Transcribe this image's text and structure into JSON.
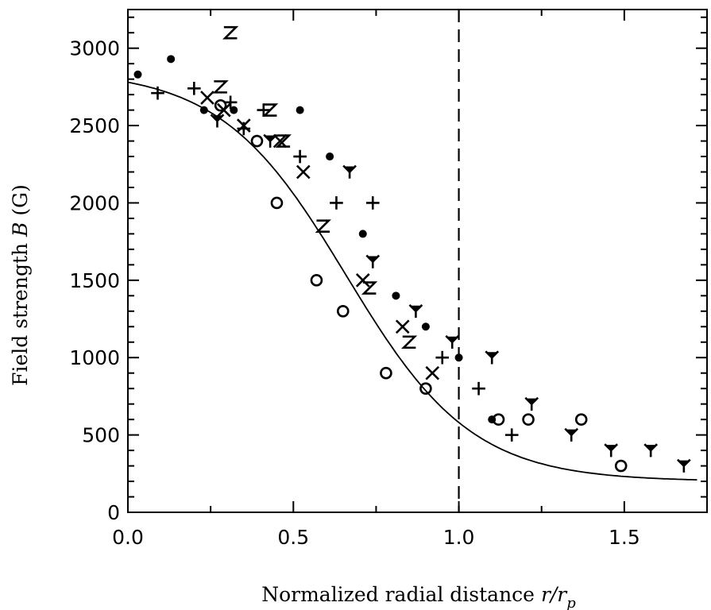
{
  "chart_data": {
    "type": "scatter",
    "xlabel_main": "Normalized radial distance ",
    "xlabel_var": "r/r",
    "xlabel_sub": "p",
    "ylabel_main": "Field strength ",
    "ylabel_var": "B",
    "ylabel_unit": " (G)",
    "xlim": [
      0.0,
      1.75
    ],
    "ylim": [
      0,
      3250
    ],
    "x_ticks": [
      0.0,
      0.5,
      1.0,
      1.5
    ],
    "x_tick_labels": [
      "0.0",
      "0.5",
      "1.0",
      "1.5"
    ],
    "y_ticks": [
      0,
      500,
      1000,
      1500,
      2000,
      2500,
      3000
    ],
    "y_tick_labels": [
      "0",
      "500",
      "1000",
      "1500",
      "2000",
      "2500",
      "3000"
    ],
    "vline_x": 1.0,
    "series": [
      {
        "marker": "dot",
        "points": [
          [
            0.03,
            2830
          ],
          [
            0.13,
            2930
          ],
          [
            0.23,
            2600
          ],
          [
            0.32,
            2600
          ],
          [
            0.52,
            2600
          ],
          [
            0.61,
            2300
          ],
          [
            0.71,
            1800
          ],
          [
            0.81,
            1400
          ],
          [
            0.9,
            1200
          ],
          [
            1.0,
            1000
          ],
          [
            1.1,
            600
          ]
        ]
      },
      {
        "marker": "plus",
        "points": [
          [
            0.09,
            2710
          ],
          [
            0.2,
            2740
          ],
          [
            0.31,
            2650
          ],
          [
            0.35,
            2480
          ],
          [
            0.41,
            2600
          ],
          [
            0.52,
            2300
          ],
          [
            0.63,
            2000
          ],
          [
            0.74,
            2000
          ],
          [
            0.95,
            1000
          ],
          [
            1.06,
            800
          ],
          [
            1.16,
            500
          ]
        ]
      },
      {
        "marker": "x",
        "points": [
          [
            0.24,
            2680
          ],
          [
            0.29,
            2600
          ],
          [
            0.35,
            2500
          ],
          [
            0.46,
            2400
          ],
          [
            0.53,
            2200
          ],
          [
            0.71,
            1500
          ],
          [
            0.83,
            1200
          ],
          [
            0.92,
            900
          ]
        ]
      },
      {
        "marker": "circle",
        "points": [
          [
            0.28,
            2630
          ],
          [
            0.39,
            2400
          ],
          [
            0.45,
            2000
          ],
          [
            0.57,
            1500
          ],
          [
            0.65,
            1300
          ],
          [
            0.78,
            900
          ],
          [
            0.9,
            800
          ],
          [
            1.12,
            600
          ],
          [
            1.21,
            600
          ],
          [
            1.37,
            600
          ],
          [
            1.49,
            300
          ]
        ]
      },
      {
        "marker": "Y",
        "points": [
          [
            0.27,
            2530
          ],
          [
            0.43,
            2400
          ],
          [
            0.67,
            2200
          ],
          [
            0.74,
            1620
          ],
          [
            0.87,
            1300
          ],
          [
            0.98,
            1100
          ],
          [
            1.1,
            1000
          ],
          [
            1.22,
            700
          ],
          [
            1.34,
            500
          ],
          [
            1.46,
            400
          ],
          [
            1.58,
            400
          ],
          [
            1.68,
            300
          ]
        ]
      },
      {
        "marker": "Z",
        "points": [
          [
            0.31,
            3100
          ],
          [
            0.28,
            2750
          ],
          [
            0.43,
            2600
          ],
          [
            0.47,
            2400
          ],
          [
            0.59,
            1850
          ],
          [
            0.73,
            1450
          ],
          [
            0.85,
            1100
          ]
        ]
      }
    ],
    "fit_curve": {
      "type": "sigmoid",
      "y_low": 200,
      "y_high": 2860,
      "x_mid": 0.66,
      "width": 0.19
    }
  }
}
